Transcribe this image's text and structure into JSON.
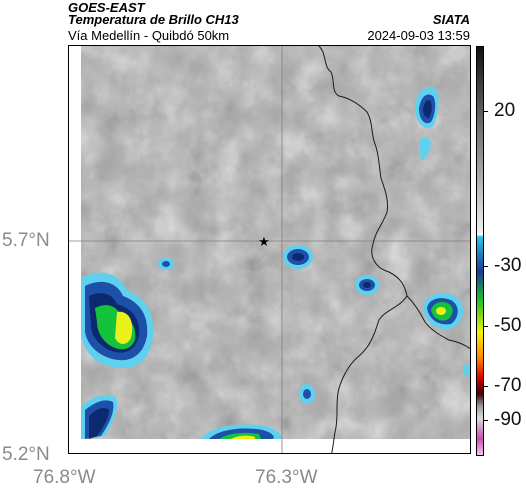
{
  "header": {
    "title_line1": "GOES-EAST",
    "title_line2": "Temperatura de Brillo CH13",
    "subtitle": "Vía Medellín - Quibdó 50km",
    "brand": "SIATA",
    "timestamp": "2024-09-03 13:59"
  },
  "axes": {
    "lat_labels": [
      "5.7°N",
      "5.2°N"
    ],
    "lon_labels": [
      "76.8°W",
      "76.3°W"
    ]
  },
  "colorbar": {
    "tick_labels": [
      "20",
      "-30",
      "-50",
      "-70",
      "-90"
    ],
    "colors": {
      "warm_black": "#111111",
      "gray_light": "#eeeeee",
      "cyan": "#29c6e6",
      "blue": "#1a3b9c",
      "green": "#1fbf2a",
      "yellow": "#f2f200",
      "orange": "#ff8a00",
      "red": "#e00000",
      "dark_red": "#400000",
      "magenta": "#c84fb4"
    }
  },
  "map": {
    "marker_icon": "star-icon",
    "cloud_colors": {
      "outer_cyan": "#5fd1ef",
      "blue": "#1d50a8",
      "navy": "#0d2a70",
      "green": "#14c23c",
      "yellow": "#eaf01c"
    }
  }
}
